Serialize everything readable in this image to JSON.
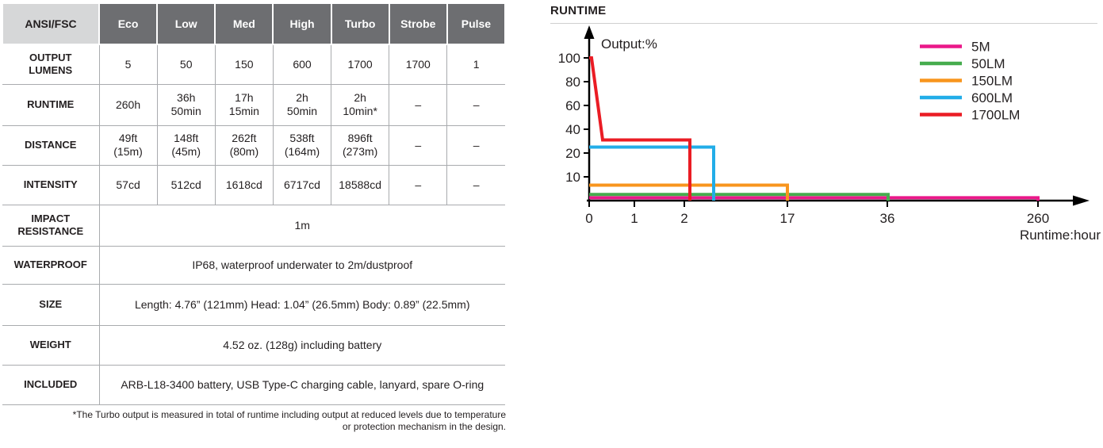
{
  "theme": {
    "text": "#231f20",
    "header_dark": "#6d6e71",
    "header_light": "#d6d7d8",
    "border": "#a9abae",
    "rule": "#d0d0d0"
  },
  "table": {
    "header": [
      "ANSI/FSC",
      "Eco",
      "Low",
      "Med",
      "High",
      "Turbo",
      "Strobe",
      "Pulse"
    ],
    "rows": [
      {
        "label": "OUTPUT\nLUMENS",
        "cells": [
          "5",
          "50",
          "150",
          "600",
          "1700",
          "1700",
          "1"
        ]
      },
      {
        "label": "RUNTIME",
        "cells": [
          "260h",
          "36h\n50min",
          "17h\n15min",
          "2h\n50min",
          "2h\n10min*",
          "–",
          "–"
        ]
      },
      {
        "label": "DISTANCE",
        "cells": [
          "49ft\n(15m)",
          "148ft\n(45m)",
          "262ft\n(80m)",
          "538ft\n(164m)",
          "896ft\n(273m)",
          "–",
          "–"
        ]
      },
      {
        "label": "INTENSITY",
        "cells": [
          "57cd",
          "512cd",
          "1618cd",
          "6717cd",
          "18588cd",
          "–",
          "–"
        ]
      },
      {
        "label": "IMPACT\nRESISTANCE",
        "span": "1m"
      },
      {
        "label": "WATERPROOF",
        "span": "IP68, waterproof underwater to 2m/dustproof"
      },
      {
        "label": "SIZE",
        "span": "Length: 4.76” (121mm)  Head: 1.04” (26.5mm)  Body: 0.89” (22.5mm)"
      },
      {
        "label": "WEIGHT",
        "span": "4.52 oz. (128g) including battery"
      },
      {
        "label": "INCLUDED",
        "span": "ARB-L18-3400 battery, USB Type-C charging cable, lanyard, spare O-ring"
      }
    ],
    "footnote_lines": [
      "*The Turbo output is measured in total of runtime including output at reduced levels due to temperature",
      "or protection mechanism in the design."
    ]
  },
  "chart_data": {
    "type": "line",
    "title": "RUNTIME",
    "y_axis_label": "Output:%",
    "x_axis_label": "Runtime:hour",
    "ylim": [
      0,
      100
    ],
    "y_scale": "equal-step-ticks",
    "y_ticks": [
      10,
      20,
      40,
      60,
      80,
      100
    ],
    "x_ticks": [
      {
        "label": "0",
        "u": 0
      },
      {
        "label": "1",
        "u": 57
      },
      {
        "label": "2",
        "u": 120
      },
      {
        "label": "17",
        "u": 250
      },
      {
        "label": "36",
        "u": 376
      },
      {
        "label": "260",
        "u": 566
      }
    ],
    "grid": false,
    "legend_position": "top-right",
    "series": [
      {
        "name": "5M",
        "color": "#ea1889",
        "output_pct": 1.2,
        "runtime_hours": 260,
        "points": [
          [
            0,
            1.2
          ],
          [
            566,
            1.2
          ],
          [
            566,
            0
          ]
        ]
      },
      {
        "name": "50LM",
        "color": "#45ac4d",
        "output_pct": 2.6,
        "runtime_hours": 36,
        "points": [
          [
            0,
            2.6
          ],
          [
            377,
            2.6
          ],
          [
            377,
            0
          ]
        ]
      },
      {
        "name": "150LM",
        "color": "#f8951d",
        "output_pct": 6.5,
        "runtime_hours": 17,
        "points": [
          [
            0,
            6.5
          ],
          [
            250,
            6.5
          ],
          [
            250,
            0
          ]
        ]
      },
      {
        "name": "600LM",
        "color": "#22ade8",
        "output_pct": 25,
        "runtime_hours": 2.83,
        "points": [
          [
            0,
            25
          ],
          [
            157,
            25
          ],
          [
            157,
            0
          ]
        ]
      },
      {
        "name": "1700LM",
        "color": "#ea1c24",
        "output_pct": 31,
        "output_pct_initial": 100,
        "runtime_hours": 2.17,
        "points": [
          [
            0,
            100
          ],
          [
            3,
            100
          ],
          [
            17,
            31
          ],
          [
            127,
            31
          ],
          [
            127,
            0
          ]
        ]
      }
    ]
  }
}
